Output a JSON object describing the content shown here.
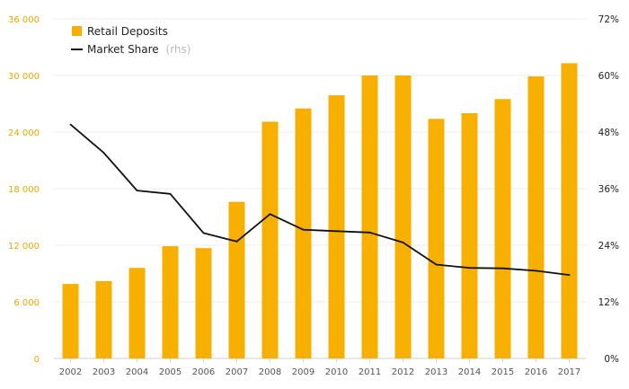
{
  "chart_data": {
    "type": "bar+line",
    "categories": [
      "2002",
      "2003",
      "2004",
      "2005",
      "2006",
      "2007",
      "2008",
      "2009",
      "2010",
      "2011",
      "2012",
      "2013",
      "2014",
      "2015",
      "2016",
      "2017"
    ],
    "series": [
      {
        "name": "Retail Deposits",
        "type": "bar",
        "axis": "left",
        "color": "#f7b000",
        "values": [
          7900,
          8200,
          9600,
          11900,
          11700,
          16600,
          25100,
          26500,
          27900,
          30000,
          30000,
          25400,
          26000,
          27500,
          29900,
          31300
        ]
      },
      {
        "name": "Market Share",
        "type": "line",
        "axis": "right",
        "color": "#111111",
        "values": [
          49.6,
          43.6,
          35.6,
          34.9,
          26.6,
          24.8,
          30.6,
          27.3,
          27.0,
          26.7,
          24.6,
          19.9,
          19.2,
          19.1,
          18.6,
          17.7
        ]
      }
    ],
    "legend": {
      "items": [
        {
          "label": "Retail Deposits",
          "suffix": ""
        },
        {
          "label": "Market Share",
          "suffix": "(rhs)"
        }
      ],
      "position": "top-left"
    },
    "left_axis": {
      "ylim": [
        0,
        36000
      ],
      "ticks": [
        0,
        6000,
        12000,
        18000,
        24000,
        30000,
        36000
      ],
      "tick_labels": [
        "0",
        "6 000",
        "12 000",
        "18 000",
        "24 000",
        "30 000",
        "36 000"
      ],
      "color": "#f0a500"
    },
    "right_axis": {
      "ylim": [
        0,
        72
      ],
      "ticks": [
        0,
        12,
        24,
        36,
        48,
        60,
        72
      ],
      "tick_labels": [
        "0%",
        "12%",
        "24%",
        "36%",
        "48%",
        "60%",
        "72%"
      ]
    },
    "grid": true,
    "title": "",
    "xlabel": "",
    "ylabel": ""
  }
}
